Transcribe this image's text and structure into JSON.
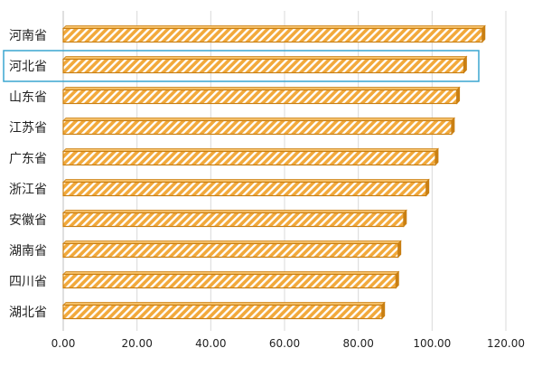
{
  "chart_data": {
    "type": "bar",
    "orientation": "horizontal",
    "categories": [
      "河南省",
      "河北省",
      "山东省",
      "江苏省",
      "广东省",
      "浙江省",
      "安徽省",
      "湖南省",
      "四川省",
      "湖北省"
    ],
    "values": [
      113.6,
      108.6,
      106.7,
      105.3,
      100.9,
      98.4,
      92.3,
      90.8,
      90.2,
      86.4
    ],
    "xlim": [
      0,
      120
    ],
    "xticks": [
      0,
      20,
      40,
      60,
      80,
      100,
      120
    ],
    "xtick_labels": [
      "0.00",
      "20.00",
      "40.00",
      "60.00",
      "80.00",
      "100.00",
      "120.00"
    ],
    "grid": "vertical",
    "highlighted_category": "河北省",
    "colors": {
      "bar_fill": "#f2a93b",
      "bar_stripe": "#ffffff",
      "bar_edge": "#c97f12",
      "bar_top": "#f6c16a",
      "highlight_border": "#3aa6d0",
      "grid": "#d9d9d9",
      "text": "#222222"
    }
  }
}
